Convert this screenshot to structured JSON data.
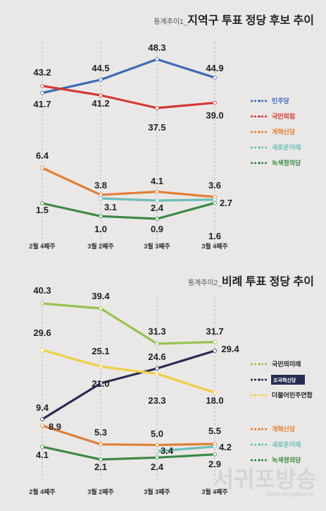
{
  "colors": {
    "background": "#e9e8e7",
    "gridline": "#bdbcbb"
  },
  "watermark": {
    "name": "서귀포방송",
    "url": "www.seogwipo.tv"
  },
  "chart_data": [
    {
      "type": "line",
      "title_prefix": "통계추이1_",
      "title": "지역구 투표 정당 후보 추이",
      "categories": [
        "2월 4째주",
        "3월 2째주",
        "3월 3째주",
        "3월 4째주"
      ],
      "series": [
        {
          "name": "민주당",
          "color": "#3d6ab3",
          "values": [
            41.7,
            44.5,
            48.3,
            44.9
          ]
        },
        {
          "name": "국민의힘",
          "color": "#d43a32",
          "values": [
            43.2,
            41.2,
            37.5,
            39.0
          ]
        },
        {
          "name": "개혁신당",
          "color": "#e07f35",
          "values": [
            6.4,
            3.8,
            4.1,
            3.6
          ]
        },
        {
          "name": "새로운미래",
          "color": "#6dbdb8",
          "values": [
            null,
            3.1,
            2.4,
            2.7
          ]
        },
        {
          "name": "녹색정의당",
          "color": "#3b8a44",
          "values": [
            1.5,
            1.0,
            0.9,
            1.6
          ]
        }
      ]
    },
    {
      "type": "line",
      "title_prefix": "통계추이2_",
      "title": "비례 투표 정당 추이",
      "categories": [
        "2월 4째주",
        "3월 2째주",
        "3월 3째주",
        "3월 4째주"
      ],
      "series": [
        {
          "name": "국민의미래",
          "color": "#97c24e",
          "values": [
            40.3,
            39.4,
            31.3,
            31.7
          ]
        },
        {
          "name": "조국혁신당",
          "color": "#272d52",
          "values": [
            9.4,
            21.0,
            24.6,
            29.4
          ]
        },
        {
          "name": "더불어민주연합",
          "color": "#f0cf45",
          "values": [
            29.6,
            25.1,
            23.3,
            18.0
          ]
        },
        {
          "name": "개혁신당",
          "color": "#e07f35",
          "values": [
            8.9,
            5.3,
            5.0,
            5.5
          ]
        },
        {
          "name": "새로운미래",
          "color": "#6dbdb8",
          "values": [
            null,
            null,
            3.4,
            4.2
          ]
        },
        {
          "name": "녹색정의당",
          "color": "#3b8a44",
          "values": [
            4.1,
            2.1,
            2.4,
            2.9
          ]
        }
      ]
    }
  ]
}
